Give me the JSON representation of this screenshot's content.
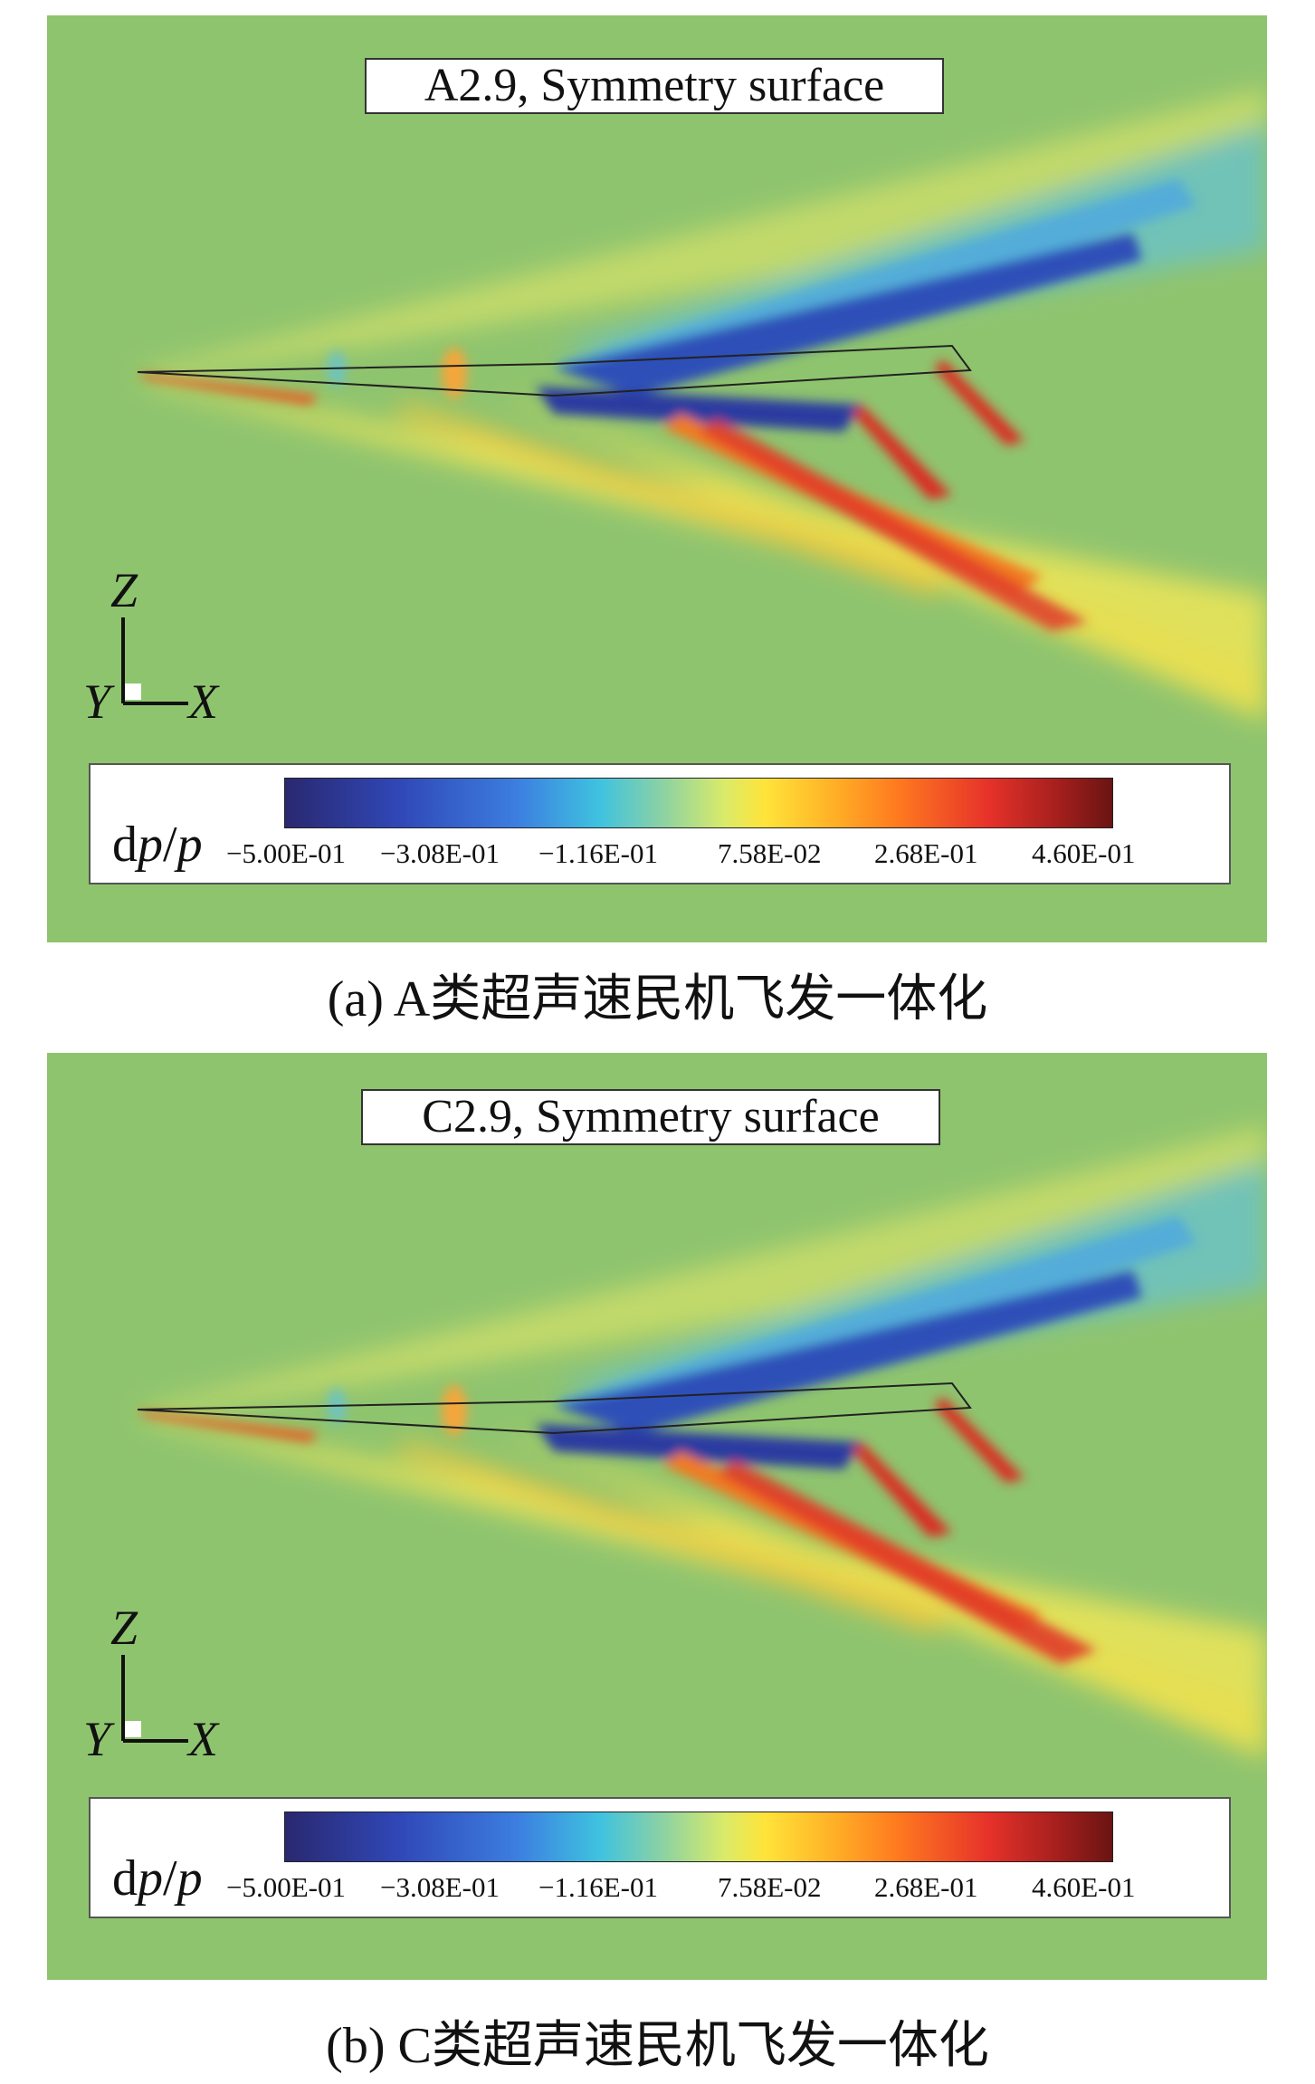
{
  "panels": [
    {
      "title": "A2.9, Symmetry surface",
      "axes": {
        "z": "Z",
        "y": "Y",
        "x": "X"
      },
      "colorbar": {
        "variable_prefix": "d",
        "variable_p1": "p",
        "variable_slash": "/",
        "variable_p2": "p",
        "ticks": [
          "−5.00E-01",
          "−3.08E-01",
          "−1.16E-01",
          "7.58E-02",
          "2.68E-01",
          "4.60E-01"
        ]
      },
      "caption": "(a) A类超声速民机飞发一体化"
    },
    {
      "title": "C2.9, Symmetry surface",
      "axes": {
        "z": "Z",
        "y": "Y",
        "x": "X"
      },
      "colorbar": {
        "variable_prefix": "d",
        "variable_p1": "p",
        "variable_slash": "/",
        "variable_p2": "p",
        "ticks": [
          "−5.00E-01",
          "−3.08E-01",
          "−1.16E-01",
          "7.58E-02",
          "2.68E-01",
          "4.60E-01"
        ]
      },
      "caption": "(b) C类超声速民机飞发一体化"
    }
  ],
  "colors": {
    "background_field": "#8fc46f",
    "expansion": "#3048b8",
    "compression": "#e6322a",
    "weak_compression": "#ffe43a"
  }
}
